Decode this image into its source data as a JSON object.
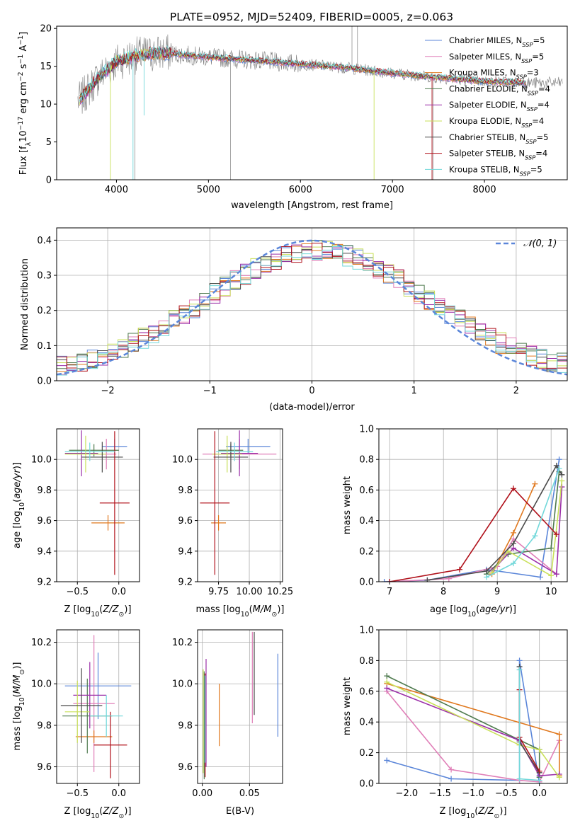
{
  "colors": {
    "chabrier_miles": "#5b86d9",
    "salpeter_miles": "#e07fb8",
    "kroupa_miles": "#e0781e",
    "chabrier_elodie": "#4e7a4e",
    "salpeter_elodie": "#9b2fa8",
    "kroupa_elodie": "#c9e05a",
    "chabrier_stelib": "#4a4a4a",
    "salpeter_stelib": "#b0101a",
    "kroupa_stelib": "#72d8da",
    "data": "#7f7f7f",
    "gauss": "#5b86d9"
  },
  "chart_data": [
    {
      "type": "line",
      "title": "PLATE=0952, MJD=52409, FIBERID=0005, z=0.063",
      "xlabel": "wavelength [Angstrom, rest frame]",
      "ylabel": "Flux [fλ10⁻¹⁷ erg cm⁻² s⁻¹ A⁻¹]",
      "xlim": [
        3350,
        8900
      ],
      "ylim": [
        0,
        20.3
      ],
      "xticks": [
        "4000",
        "5000",
        "6000",
        "7000",
        "8000"
      ],
      "yticks": [
        "0",
        "5",
        "10",
        "15",
        "20"
      ],
      "legend_position": "top-right",
      "grid": false,
      "continuum": {
        "x": [
          3600,
          3800,
          4000,
          4200,
          4500,
          5000,
          5500,
          6000,
          6500,
          7000,
          7500,
          8000,
          8500
        ],
        "y": [
          10.5,
          13.5,
          15.6,
          16.4,
          16.8,
          16.2,
          15.8,
          15.3,
          14.8,
          14.1,
          13.5,
          13.0,
          12.8
        ]
      },
      "series": [
        {
          "name": "Chabrier MILES, N_SSP=5"
        },
        {
          "name": "Salpeter MILES, N_SSP=5"
        },
        {
          "name": "Kroupa MILES, N_SSP=3"
        },
        {
          "name": "Chabrier ELODIE, N_SSP=4"
        },
        {
          "name": "Salpeter ELODIE, N_SSP=4"
        },
        {
          "name": "Kroupa ELODIE, N_SSP=4"
        },
        {
          "name": "Chabrier STELIB, N_SSP=5"
        },
        {
          "name": "Salpeter STELIB, N_SSP=4"
        },
        {
          "name": "Kroupa STELIB, N_SSP=5"
        }
      ]
    },
    {
      "type": "bar",
      "xlabel": "(data-model)/error",
      "ylabel": "Normed distribution",
      "xlim": [
        -2.5,
        2.5
      ],
      "ylim": [
        0,
        0.435
      ],
      "xticks": [
        "−2",
        "−1",
        "0",
        "1",
        "2"
      ],
      "yticks": [
        "0.0",
        "0.1",
        "0.2",
        "0.3",
        "0.4"
      ],
      "grid": true,
      "legend_position": "top-right",
      "gauss_label": "𝒩(0, 1)",
      "bin_width": 0.1
    },
    {
      "type": "scatter",
      "xlabel": "Z [log₁₀(Z/Z⊙)]",
      "ylabel": "age  [log₁₀(age/yr)]",
      "xlim": [
        -0.75,
        0.25
      ],
      "ylim": [
        9.2,
        10.2
      ],
      "xticks": [
        "−0.5",
        "0.0"
      ],
      "yticks": [
        "9.2",
        "9.4",
        "9.6",
        "9.8",
        "10.0"
      ],
      "points": [
        {
          "x": -0.05,
          "y": 10.085,
          "xerr": 0.15,
          "yerr": 0.05
        },
        {
          "x": -0.15,
          "y": 10.035,
          "xerr": 0.12,
          "yerr": 0.1
        },
        {
          "x": -0.13,
          "y": 9.585,
          "xerr": 0.2,
          "yerr": 0.05
        },
        {
          "x": -0.3,
          "y": 10.06,
          "xerr": 0.3,
          "yerr": 0.04
        },
        {
          "x": -0.45,
          "y": 10.04,
          "xerr": 0.2,
          "yerr": 0.15
        },
        {
          "x": -0.4,
          "y": 10.035,
          "xerr": 0.25,
          "yerr": 0.12
        },
        {
          "x": -0.2,
          "y": 10.015,
          "xerr": 0.25,
          "yerr": 0.1
        },
        {
          "x": -0.05,
          "y": 9.715,
          "xerr": 0.18,
          "yerr": 0.47
        },
        {
          "x": -0.35,
          "y": 10.05,
          "xerr": 0.3,
          "yerr": 0.06
        }
      ]
    },
    {
      "type": "scatter",
      "xlabel": "mass [log₁₀(M/M⊙)]",
      "xlim": [
        9.58,
        10.27
      ],
      "ylim": [
        9.2,
        10.2
      ],
      "xticks": [
        "9.75",
        "10.00",
        "10.25"
      ],
      "yticks": [
        "9.2",
        "9.4",
        "9.6",
        "9.8",
        "10.0"
      ],
      "points": [
        {
          "x": 9.99,
          "y": 10.085,
          "xerr": 0.18,
          "yerr": 0.05
        },
        {
          "x": 9.92,
          "y": 10.035,
          "xerr": 0.3,
          "yerr": 0.1
        },
        {
          "x": 9.75,
          "y": 9.585,
          "xerr": 0.06,
          "yerr": 0.05
        },
        {
          "x": 9.85,
          "y": 10.06,
          "xerr": 0.1,
          "yerr": 0.04
        },
        {
          "x": 9.92,
          "y": 10.04,
          "xerr": 0.15,
          "yerr": 0.15
        },
        {
          "x": 9.82,
          "y": 10.035,
          "xerr": 0.12,
          "yerr": 0.12
        },
        {
          "x": 9.85,
          "y": 10.015,
          "xerr": 0.14,
          "yerr": 0.1
        },
        {
          "x": 9.72,
          "y": 9.715,
          "xerr": 0.12,
          "yerr": 0.47
        },
        {
          "x": 9.88,
          "y": 10.05,
          "xerr": 0.15,
          "yerr": 0.06
        }
      ]
    },
    {
      "type": "line",
      "xlabel": "age  [log₁₀(age/yr)]",
      "ylabel": "mass weight",
      "xlim": [
        6.8,
        10.3
      ],
      "ylim": [
        0,
        1.0
      ],
      "xticks": [
        "7",
        "8",
        "9",
        "10"
      ],
      "yticks": [
        "0.0",
        "0.2",
        "0.4",
        "0.6",
        "0.8",
        "1.0"
      ],
      "grid": true,
      "series": [
        {
          "x": [
            6.9,
            7.7,
            8.8,
            9.8,
            10.15
          ],
          "y": [
            0.0,
            0.01,
            0.08,
            0.03,
            0.8
          ]
        },
        {
          "x": [
            7.0,
            8.1,
            9.0,
            9.3,
            10.1
          ],
          "y": [
            0.0,
            0.02,
            0.1,
            0.28,
            0.05
          ]
        },
        {
          "x": [
            8.9,
            9.3,
            9.7
          ],
          "y": [
            0.05,
            0.32,
            0.64
          ]
        },
        {
          "x": [
            8.8,
            9.2,
            10.0,
            10.15
          ],
          "y": [
            0.05,
            0.18,
            0.22,
            0.72
          ]
        },
        {
          "x": [
            8.9,
            9.3,
            10.1,
            10.2
          ],
          "y": [
            0.07,
            0.22,
            0.05,
            0.62
          ]
        },
        {
          "x": [
            8.9,
            9.2,
            10.0,
            10.2
          ],
          "y": [
            0.06,
            0.2,
            0.04,
            0.66
          ]
        },
        {
          "x": [
            7.7,
            8.8,
            9.3,
            10.1,
            10.2
          ],
          "y": [
            0.01,
            0.07,
            0.25,
            0.76,
            0.7
          ]
        },
        {
          "x": [
            7.0,
            8.3,
            9.3,
            10.1
          ],
          "y": [
            0.0,
            0.08,
            0.61,
            0.31
          ]
        },
        {
          "x": [
            8.8,
            9.3,
            9.7,
            10.15
          ],
          "y": [
            0.03,
            0.12,
            0.3,
            0.74
          ]
        }
      ]
    },
    {
      "type": "scatter",
      "xlabel": "Z [log₁₀(Z/Z⊙)]",
      "ylabel": "mass [log₁₀(M/M⊙)]",
      "xlim": [
        -0.75,
        0.25
      ],
      "ylim": [
        9.52,
        10.26
      ],
      "xticks": [
        "−0.5",
        "0.0"
      ],
      "yticks": [
        "9.6",
        "9.8",
        "10.0",
        "10.2"
      ],
      "points": [
        {
          "x": -0.25,
          "y": 9.99,
          "xerr": 0.4,
          "yerr": 0.16
        },
        {
          "x": -0.3,
          "y": 9.905,
          "xerr": 0.25,
          "yerr": 0.33
        },
        {
          "x": -0.3,
          "y": 9.745,
          "xerr": 0.22,
          "yerr": 0.03
        },
        {
          "x": -0.38,
          "y": 9.845,
          "xerr": 0.3,
          "yerr": 0.18
        },
        {
          "x": -0.35,
          "y": 9.945,
          "xerr": 0.2,
          "yerr": 0.16
        },
        {
          "x": -0.5,
          "y": 9.865,
          "xerr": 0.15,
          "yerr": 0.15
        },
        {
          "x": -0.45,
          "y": 9.895,
          "xerr": 0.25,
          "yerr": 0.18
        },
        {
          "x": -0.1,
          "y": 9.705,
          "xerr": 0.2,
          "yerr": 0.16
        },
        {
          "x": -0.15,
          "y": 9.845,
          "xerr": 0.2,
          "yerr": 0.1
        }
      ]
    },
    {
      "type": "scatter",
      "xlabel": "E(B-V)",
      "xlim": [
        -0.005,
        0.085
      ],
      "ylim": [
        9.52,
        10.26
      ],
      "xticks": [
        "0.00",
        "0.05"
      ],
      "yticks": [
        "9.6",
        "9.8",
        "10.0",
        "10.2"
      ],
      "points": [
        {
          "x": 0.08,
          "y": 9.945,
          "yerr": 0.2
        },
        {
          "x": 0.053,
          "y": 10.03,
          "yerr": 0.22
        },
        {
          "x": 0.018,
          "y": 9.85,
          "yerr": 0.15
        },
        {
          "x": 0.002,
          "y": 9.8,
          "yerr": 0.26
        },
        {
          "x": 0.004,
          "y": 9.86,
          "yerr": 0.26
        },
        {
          "x": 0.001,
          "y": 9.82,
          "yerr": 0.25
        },
        {
          "x": 0.055,
          "y": 10.05,
          "yerr": 0.2
        },
        {
          "x": 0.003,
          "y": 9.8,
          "yerr": 0.25
        },
        {
          "x": 0.003,
          "y": 9.83,
          "yerr": 0.21
        }
      ]
    },
    {
      "type": "line",
      "xlabel": "Z [log₁₀(Z/Z⊙)]",
      "ylabel": "mass weight",
      "xlim": [
        -2.42,
        0.42
      ],
      "ylim": [
        0,
        1.0
      ],
      "xticks": [
        "−2.0",
        "−1.5",
        "−1.0",
        "−0.5",
        "0.0"
      ],
      "yticks": [
        "0.0",
        "0.2",
        "0.4",
        "0.6",
        "0.8",
        "1.0"
      ],
      "grid": true,
      "series": [
        {
          "x": [
            -2.3,
            -1.33,
            -0.3,
            -0.3,
            0.0
          ],
          "y": [
            0.15,
            0.03,
            0.02,
            0.8,
            0.0
          ]
        },
        {
          "x": [
            -2.3,
            -1.33,
            -0.3,
            0.0,
            0.3
          ],
          "y": [
            0.6,
            0.09,
            0.02,
            0.01,
            0.28
          ]
        },
        {
          "x": [
            -2.3,
            0.3,
            0.3
          ],
          "y": [
            0.65,
            0.32,
            0.05
          ]
        },
        {
          "x": [
            -2.3,
            0.0,
            0.0
          ],
          "y": [
            0.7,
            0.22,
            0.04
          ]
        },
        {
          "x": [
            -2.3,
            -0.3,
            0.0,
            0.3
          ],
          "y": [
            0.62,
            0.28,
            0.05,
            0.06
          ]
        },
        {
          "x": [
            -2.3,
            -0.3,
            0.0,
            0.3
          ],
          "y": [
            0.66,
            0.25,
            0.22,
            0.04
          ]
        },
        {
          "x": [
            -0.3,
            -0.3,
            0.0
          ],
          "y": [
            0.76,
            0.27,
            0.07
          ]
        },
        {
          "x": [
            -0.3,
            -0.3,
            0.0
          ],
          "y": [
            0.61,
            0.3,
            0.08
          ]
        },
        {
          "x": [
            -0.3,
            -0.3,
            0.0
          ],
          "y": [
            0.74,
            0.03,
            0.02
          ]
        }
      ]
    }
  ]
}
